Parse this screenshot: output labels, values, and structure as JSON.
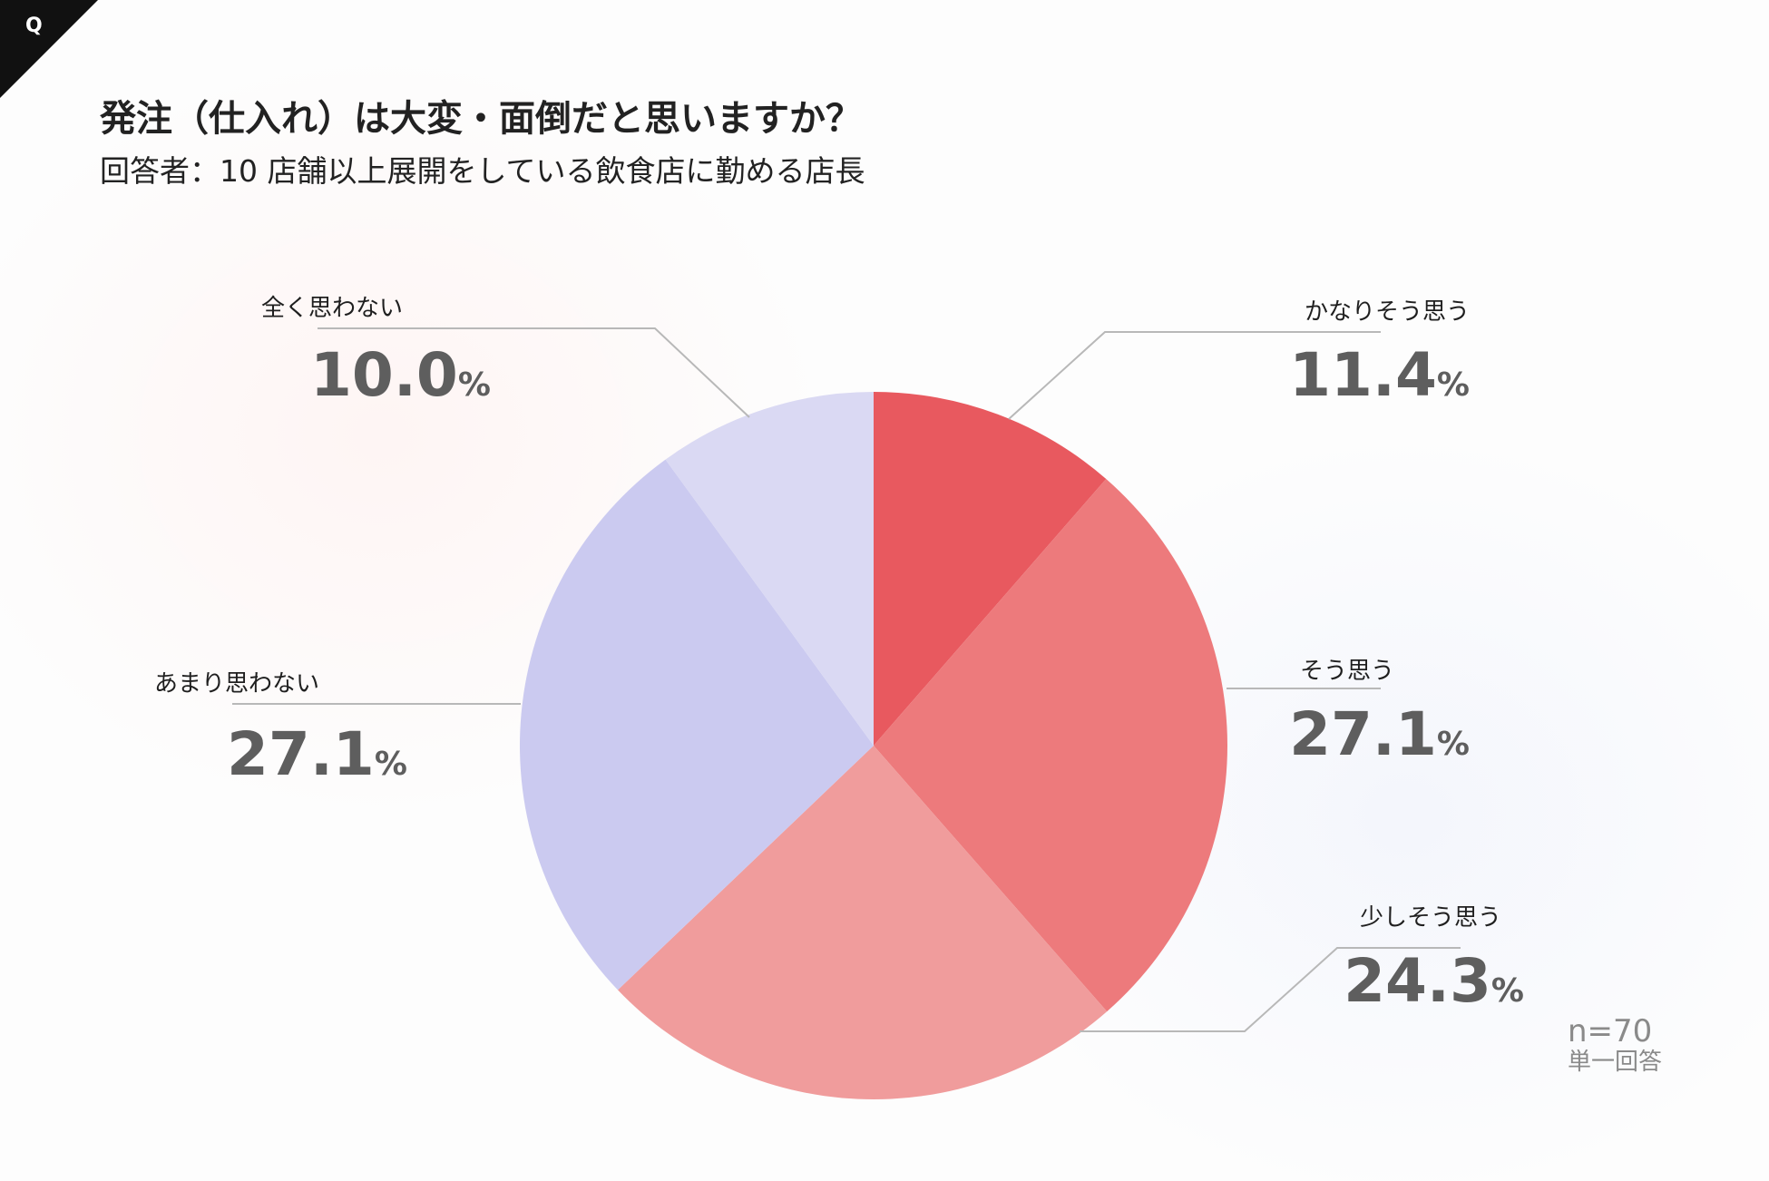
{
  "badge": "Q",
  "title": "発注（仕入れ）は大変・面倒だと思いますか？",
  "subtitle": "回答者：10 店舗以上展開をしている飲食店に勤める店長",
  "sample": {
    "n": "n=70",
    "type": "単一回答"
  },
  "chart_data": {
    "type": "pie",
    "title": "発注（仕入れ）は大変・面倒だと思いますか？",
    "subtitle": "回答者：10 店舗以上展開をしている飲食店に勤める店長",
    "unit": "%",
    "categories": [
      "かなりそう思う",
      "そう思う",
      "少しそう思う",
      "あまり思わない",
      "全く思わない"
    ],
    "values": [
      11.4,
      27.1,
      24.3,
      27.1,
      10.0
    ],
    "value_labels": [
      "11.4",
      "27.1",
      "24.3",
      "27.1",
      "10.0"
    ],
    "colors": [
      "#E8595F",
      "#ED7A7C",
      "#F09C9C",
      "#CBCAF0",
      "#DAD9F3"
    ],
    "start": "12 o'clock",
    "direction": "clockwise",
    "legend": "callout labels around pie"
  }
}
